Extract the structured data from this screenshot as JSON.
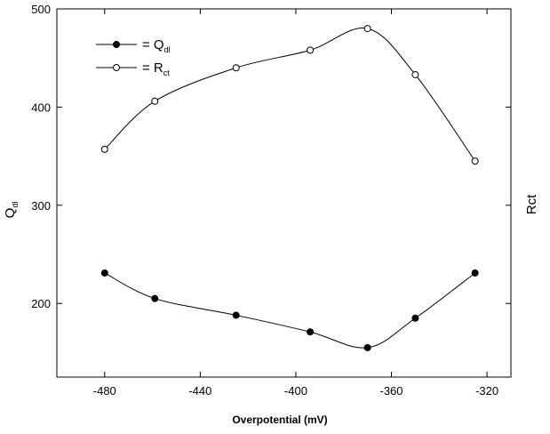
{
  "chart_data": {
    "type": "scatter",
    "xlabel": "Overpotential (mV)",
    "ylabel_left": {
      "main": "Q",
      "sub": "dl"
    },
    "ylabel_right": "Rct",
    "xlim": [
      -500,
      -310
    ],
    "ylim": [
      125,
      500
    ],
    "xticks": [
      -480,
      -440,
      -400,
      -360,
      -320
    ],
    "xtick_labels": [
      "-480",
      "-440",
      "-400",
      "-360",
      "-320"
    ],
    "yticks": [
      200,
      300,
      400,
      500
    ],
    "ytick_labels": [
      "200",
      "300",
      "400",
      "500"
    ],
    "grid": false,
    "legend_position": "top-left",
    "series": [
      {
        "legend": {
          "prefix": "= Q",
          "sub": "dl"
        },
        "marker": "filled-circle",
        "color": "#000000",
        "x": [
          -480,
          -459,
          -425,
          -394,
          -370,
          -350,
          -325
        ],
        "y": [
          231,
          205,
          188,
          171,
          155,
          185,
          231
        ]
      },
      {
        "legend": {
          "prefix": "= R",
          "sub": "ct"
        },
        "marker": "open-circle",
        "color": "#000000",
        "x": [
          -480,
          -459,
          -425,
          -394,
          -370,
          -350,
          -325
        ],
        "y": [
          357,
          406,
          440,
          458,
          480,
          433,
          345
        ]
      }
    ]
  }
}
